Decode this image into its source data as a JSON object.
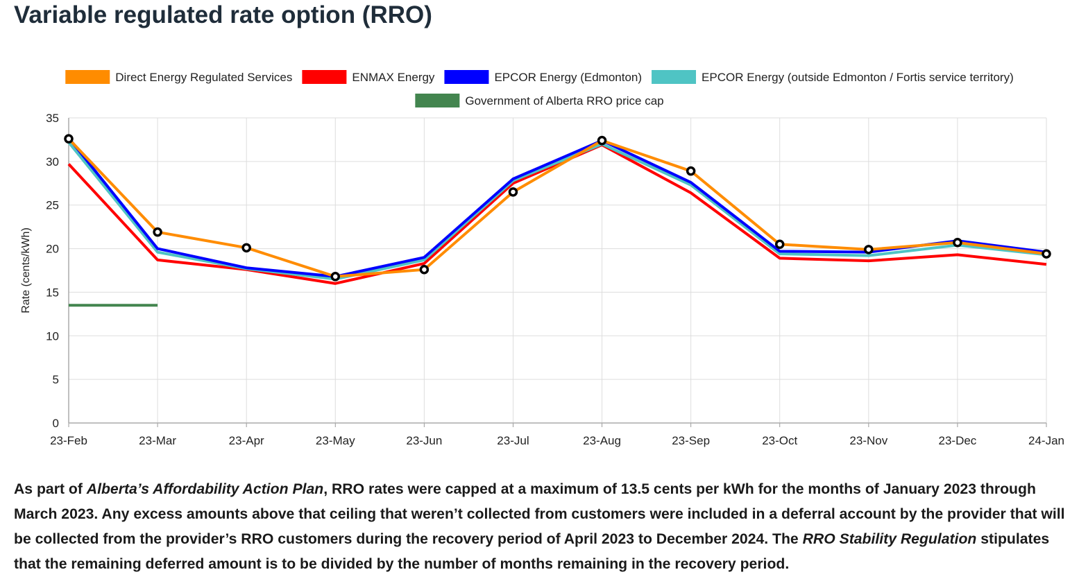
{
  "page": {
    "title": "Variable regulated rate option (RRO)",
    "description": [
      {
        "text": "As part of ",
        "italic": false
      },
      {
        "text": "Alberta’s Affordability Action Plan",
        "italic": true
      },
      {
        "text": ", RRO rates were capped at a maximum of 13.5 cents per kWh for the months of January 2023 through March 2023. Any excess amounts above that ceiling that weren’t collected from customers were included in a deferral account by the provider that will be collected from the provider’s RRO customers during the recovery period of April 2023 to December 2024. The ",
        "italic": false
      },
      {
        "text": "RRO Stability Regulation",
        "italic": true
      },
      {
        "text": " stipulates that the remaining deferred amount is to be divided by the number of months remaining in the recovery period.",
        "italic": false
      }
    ]
  },
  "chart_data": {
    "type": "line",
    "title": "",
    "xlabel": "",
    "ylabel": "Rate (cents/kWh)",
    "ylim": [
      0,
      35
    ],
    "yticks": [
      0,
      5,
      10,
      15,
      20,
      25,
      30,
      35
    ],
    "grid": true,
    "legend_position": "top",
    "categories": [
      "23-Feb",
      "23-Mar",
      "23-Apr",
      "23-May",
      "23-Jun",
      "23-Jul",
      "23-Aug",
      "23-Sep",
      "23-Oct",
      "23-Nov",
      "23-Dec",
      "24-Jan"
    ],
    "series": [
      {
        "name": "ENMAX Energy",
        "color": "#ff0000",
        "values": [
          29.7,
          18.7,
          17.6,
          16.0,
          18.3,
          27.5,
          31.9,
          26.4,
          18.9,
          18.6,
          19.3,
          18.2
        ]
      },
      {
        "name": "EPCOR Energy (outside Edmonton / Fortis service territory)",
        "color": "#4fc4c4",
        "values": [
          32.2,
          19.6,
          17.7,
          16.5,
          18.7,
          27.8,
          32.0,
          27.3,
          19.4,
          19.2,
          20.4,
          19.3
        ]
      },
      {
        "name": "EPCOR Energy (Edmonton)",
        "color": "#0000ff",
        "values": [
          32.7,
          20.0,
          17.8,
          16.8,
          19.0,
          28.0,
          32.4,
          27.6,
          19.7,
          19.6,
          20.9,
          19.6
        ]
      },
      {
        "name": "Direct Energy Regulated Services",
        "color": "#ff8c00",
        "values": [
          32.6,
          21.9,
          20.1,
          16.8,
          17.6,
          26.5,
          32.4,
          28.9,
          20.5,
          19.9,
          20.7,
          19.4
        ],
        "markers": true
      },
      {
        "name": "Government of Alberta RRO price cap",
        "color": "#43854f",
        "values": [
          13.5,
          13.5,
          null,
          null,
          null,
          null,
          null,
          null,
          null,
          null,
          null,
          null
        ]
      }
    ],
    "legend": [
      {
        "name": "Direct Energy Regulated Services",
        "color": "#ff8c00"
      },
      {
        "name": "ENMAX Energy",
        "color": "#ff0000"
      },
      {
        "name": "EPCOR Energy (Edmonton)",
        "color": "#0000ff"
      },
      {
        "name": "EPCOR Energy (outside Edmonton / Fortis service territory)",
        "color": "#4fc4c4"
      },
      {
        "name": "Government of Alberta RRO price cap",
        "color": "#43854f"
      }
    ]
  }
}
